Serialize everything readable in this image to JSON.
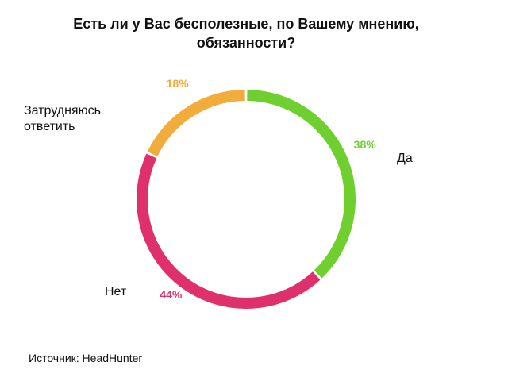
{
  "chart_data": {
    "type": "donut",
    "title": "Есть ли у Вас бесполезные, по Вашему мнению, обязанности?",
    "categories": [
      "Да",
      "Нет",
      "Затрудняюсь ответить"
    ],
    "values": [
      38,
      44,
      18
    ],
    "value_labels": [
      "38%",
      "44%",
      "18%"
    ],
    "colors": [
      "#6fcf2f",
      "#e0306b",
      "#f1ac3b"
    ],
    "source": "Источник: HeadHunter"
  }
}
